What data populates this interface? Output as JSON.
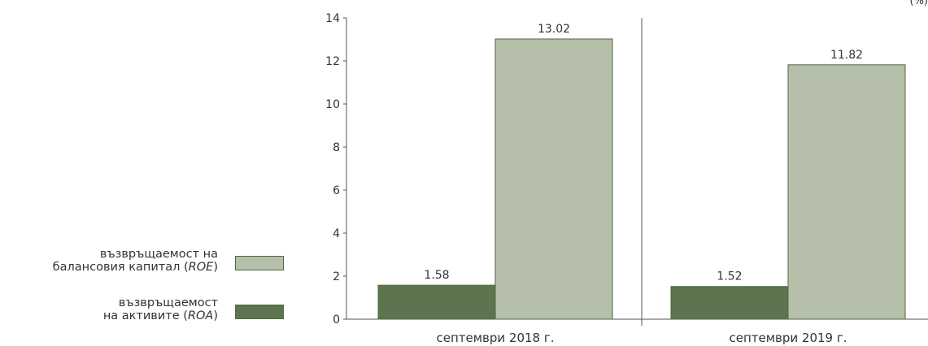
{
  "unit_label": "(%)",
  "legend": [
    {
      "key": "roe",
      "line1": "възвръщаемост на",
      "line2_prefix": "балансовия капитал (",
      "line2_italic": "ROE",
      "line2_suffix": ")",
      "color": "#b5bfaa"
    },
    {
      "key": "roa",
      "line1": "възвръщаемост",
      "line2_prefix": "на активите (",
      "line2_italic": "ROA",
      "line2_suffix": ")",
      "color": "#5c7550"
    }
  ],
  "chart_data": {
    "type": "bar",
    "categories": [
      "септември 2018 г.",
      "септември 2019 г."
    ],
    "series": [
      {
        "name": "възвръщаемост на активите (ROA)",
        "color": "#5c7550",
        "values": [
          1.58,
          1.52
        ]
      },
      {
        "name": "възвръщаемост на балансовия капитал (ROE)",
        "color": "#b5bfaa",
        "values": [
          13.02,
          11.82
        ]
      }
    ],
    "ylim": [
      0,
      14
    ],
    "yticks": [
      0,
      2,
      4,
      6,
      8,
      10,
      12,
      14
    ],
    "data_labels": [
      [
        "1.58",
        "13.02"
      ],
      [
        "1.52",
        "11.82"
      ]
    ],
    "grid": false,
    "legend_position": "left"
  }
}
